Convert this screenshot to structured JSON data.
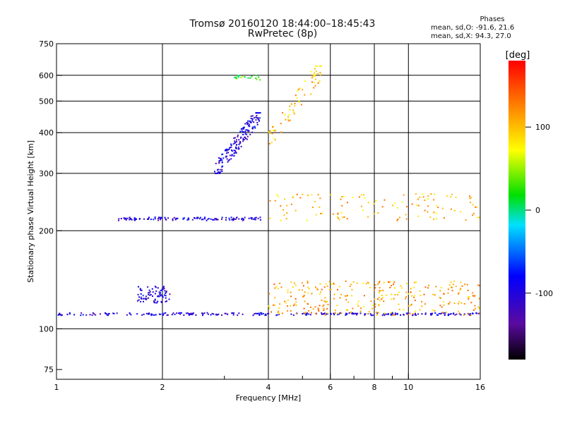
{
  "header": {
    "title": "Tromsø 20160120 18:44:00–18:45:43",
    "subtitle": "RwPretec (8p)"
  },
  "stats": {
    "heading": "Phases",
    "line_o": "mean, sd,O: -91.6, 21.6",
    "line_x": "mean, sd,X:  94.3, 27.0"
  },
  "chart_data": {
    "type": "scatter",
    "xlabel": "Frequency [MHz]",
    "ylabel": "Stationary phase Virtual Height [km]",
    "x_scale": "log",
    "y_scale": "log",
    "xlim": [
      1,
      16
    ],
    "ylim": [
      70,
      750
    ],
    "x_ticks": [
      1,
      2,
      4,
      6,
      8,
      10,
      16
    ],
    "x_minor_ticks": [
      3,
      5,
      7,
      9
    ],
    "y_ticks": [
      75,
      100,
      200,
      300,
      400,
      500,
      600,
      750
    ],
    "grid": true,
    "colorbar": {
      "label": "[deg]",
      "range": [
        -180,
        180
      ],
      "ticks": [
        100,
        0,
        -100
      ]
    },
    "clusters": [
      {
        "x": [
          1.0,
          16.0
        ],
        "y": [
          110,
          112
        ],
        "phase": -100
      },
      {
        "x": [
          1.5,
          3.9
        ],
        "y": [
          215,
          220
        ],
        "phase": -100
      },
      {
        "x": [
          2.8,
          3.8
        ],
        "y": [
          300,
          460
        ],
        "phase": -100
      },
      {
        "x": [
          1.7,
          2.1
        ],
        "y": [
          120,
          135
        ],
        "phase": -100
      },
      {
        "x": [
          4.0,
          16.0
        ],
        "y": [
          215,
          260
        ],
        "phase": 100
      },
      {
        "x": [
          4.0,
          5.7
        ],
        "y": [
          370,
          640
        ],
        "phase": 100
      },
      {
        "x": [
          4.0,
          16.0
        ],
        "y": [
          110,
          140
        ],
        "phase": 110
      },
      {
        "x": [
          3.2,
          3.8
        ],
        "y": [
          580,
          600
        ],
        "phase": 20
      }
    ]
  }
}
